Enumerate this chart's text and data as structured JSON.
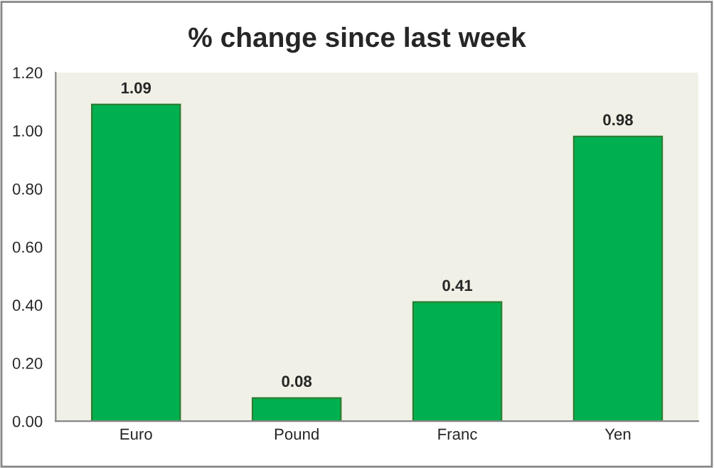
{
  "chart_data": {
    "type": "bar",
    "title": "% change since last week",
    "categories": [
      "Euro",
      "Pound",
      "Franc",
      "Yen"
    ],
    "values": [
      1.09,
      0.08,
      0.41,
      0.98
    ],
    "color": "#00b050",
    "ylim": [
      0,
      1.2
    ],
    "yticks": [
      {
        "value": 0,
        "label": "0.00"
      },
      {
        "value": 0.2,
        "label": "0.20"
      },
      {
        "value": 0.4,
        "label": "0.40"
      },
      {
        "value": 0.6,
        "label": "0.60"
      },
      {
        "value": 0.8,
        "label": "0.80"
      },
      {
        "value": 1.0,
        "label": "1.00"
      },
      {
        "value": 1.2,
        "label": "1.20"
      }
    ],
    "data_labels": true,
    "grid": false
  }
}
